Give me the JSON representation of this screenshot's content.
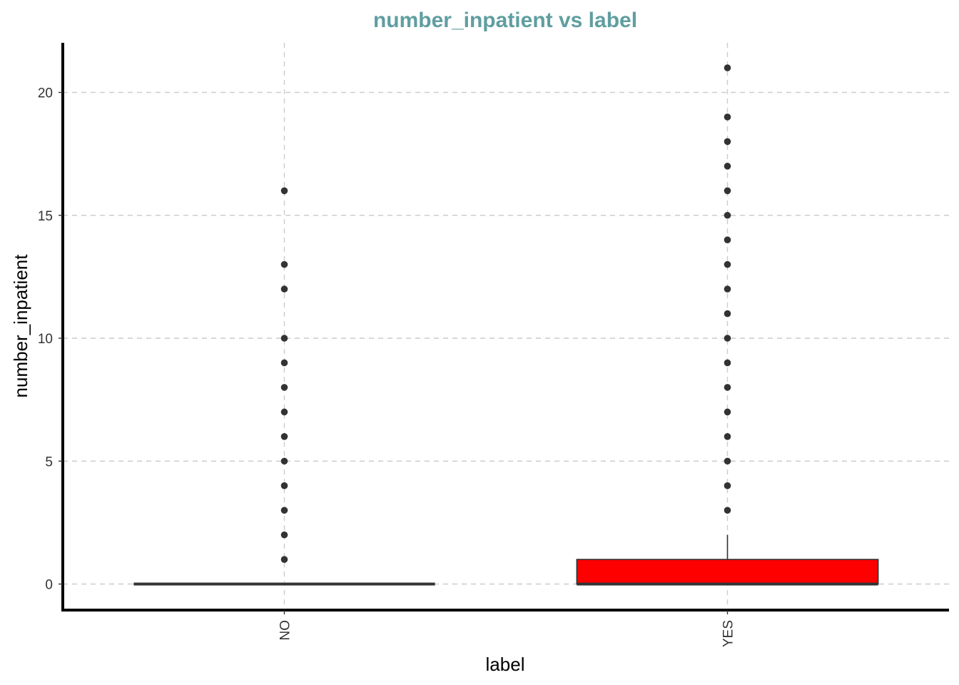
{
  "chart_data": {
    "type": "boxplot",
    "title": "number_inpatient vs label",
    "title_color": "#5f9ea0",
    "xlabel": "label",
    "ylabel": "number_inpatient",
    "categories": [
      "NO",
      "YES"
    ],
    "ylim": [
      -1,
      22
    ],
    "yticks": [
      0,
      5,
      10,
      15,
      20
    ],
    "grid": true,
    "boxes": [
      {
        "category": "NO",
        "min": 0,
        "q1": 0,
        "median": 0,
        "q3": 0,
        "max": 0,
        "fill": "#ffffff",
        "outliers": [
          1,
          2,
          3,
          4,
          5,
          6,
          7,
          8,
          9,
          10,
          12,
          13,
          16
        ]
      },
      {
        "category": "YES",
        "min": 0,
        "q1": 0,
        "median": 0,
        "q3": 1,
        "max": 2,
        "fill": "#ff0000",
        "outliers": [
          3,
          4,
          5,
          6,
          7,
          8,
          9,
          10,
          11,
          12,
          13,
          14,
          15,
          16,
          17,
          18,
          19,
          21
        ]
      }
    ]
  }
}
